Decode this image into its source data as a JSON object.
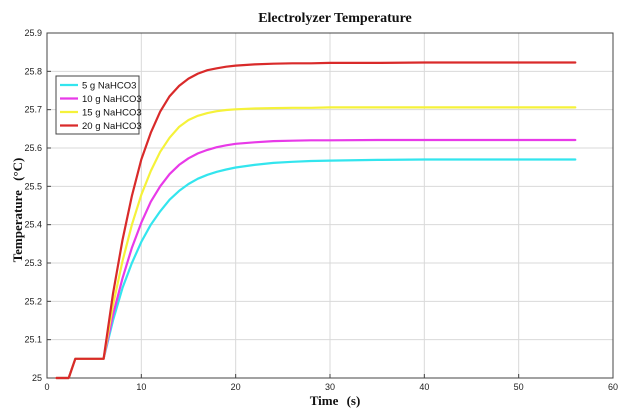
{
  "chart_data": {
    "type": "line",
    "title": "Electrolyzer Temperature",
    "xlabel": "Time",
    "xlabel_unit": "(s)",
    "ylabel": "Temperature",
    "ylabel_unit": "(°C)",
    "xlim": [
      0,
      60
    ],
    "ylim": [
      25,
      25.9
    ],
    "xticks": [
      "0",
      "10",
      "20",
      "30",
      "40",
      "50",
      "60"
    ],
    "yticks": [
      "25",
      "25.1",
      "25.2",
      "25.3",
      "25.4",
      "25.5",
      "25.6",
      "25.7",
      "25.8",
      "25.9"
    ],
    "grid": true,
    "legend_position": "upper-left",
    "x": [
      1,
      1.8,
      2.3,
      3,
      5.8,
      6,
      7,
      8,
      9,
      10,
      11,
      12,
      13,
      14,
      15,
      16,
      17,
      18,
      19,
      20,
      22,
      24,
      26,
      28,
      30,
      35,
      40,
      45,
      50,
      56
    ],
    "series": [
      {
        "name": "5 g NaHCO3",
        "color": "#33e5ee",
        "values": [
          25.0,
          25.0,
          25.0,
          25.05,
          25.05,
          25.05,
          25.15,
          25.235,
          25.3,
          25.355,
          25.4,
          25.435,
          25.465,
          25.488,
          25.506,
          25.52,
          25.53,
          25.538,
          25.544,
          25.549,
          25.556,
          25.561,
          25.564,
          25.566,
          25.567,
          25.569,
          25.57,
          25.57,
          25.57,
          25.57
        ]
      },
      {
        "name": "10 g NaHCO3",
        "color": "#e83ae8",
        "values": [
          25.0,
          25.0,
          25.0,
          25.05,
          25.05,
          25.05,
          25.165,
          25.26,
          25.34,
          25.405,
          25.46,
          25.5,
          25.532,
          25.556,
          25.573,
          25.586,
          25.595,
          25.602,
          25.607,
          25.611,
          25.615,
          25.618,
          25.619,
          25.62,
          25.62,
          25.621,
          25.621,
          25.621,
          25.621,
          25.621
        ]
      },
      {
        "name": "15 g NaHCO3",
        "color": "#f5f23a",
        "values": [
          25.0,
          25.0,
          25.0,
          25.05,
          25.05,
          25.05,
          25.19,
          25.305,
          25.4,
          25.478,
          25.54,
          25.59,
          25.627,
          25.655,
          25.673,
          25.684,
          25.691,
          25.696,
          25.699,
          25.701,
          25.703,
          25.704,
          25.705,
          25.705,
          25.706,
          25.706,
          25.706,
          25.706,
          25.706,
          25.706
        ]
      },
      {
        "name": "20 g NaHCO3",
        "color": "#d92a2a",
        "values": [
          25.0,
          25.0,
          25.0,
          25.05,
          25.05,
          25.05,
          25.22,
          25.36,
          25.475,
          25.57,
          25.64,
          25.695,
          25.735,
          25.762,
          25.781,
          25.794,
          25.803,
          25.808,
          25.812,
          25.815,
          25.818,
          25.82,
          25.821,
          25.821,
          25.822,
          25.822,
          25.823,
          25.823,
          25.823,
          25.823
        ]
      }
    ]
  }
}
